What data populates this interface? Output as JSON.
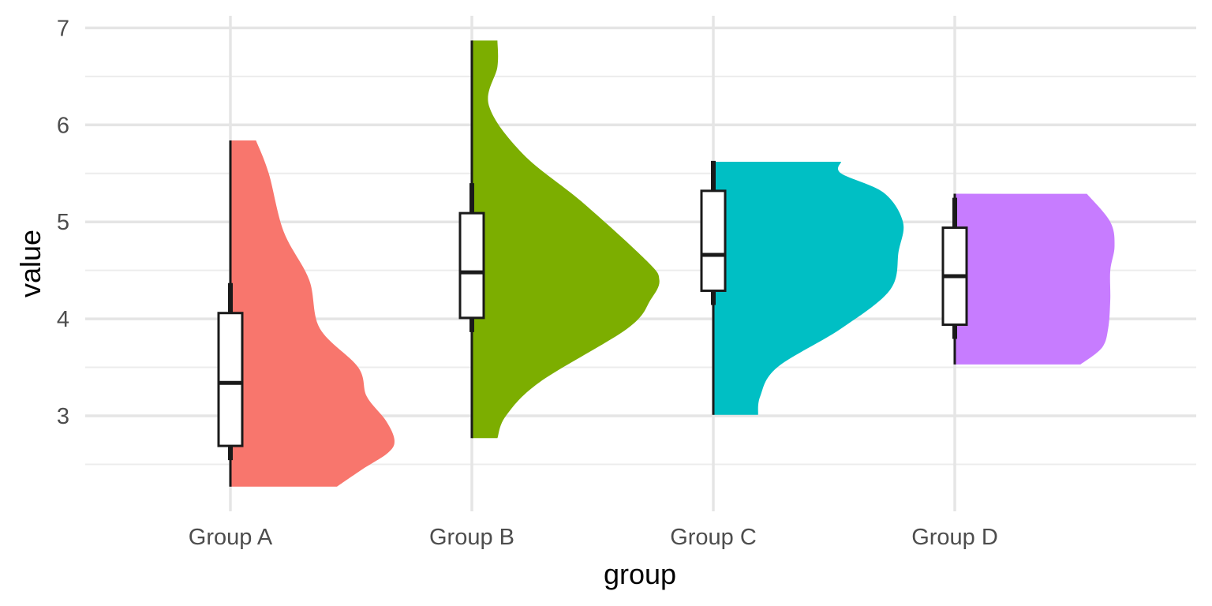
{
  "chart_data": {
    "type": "violin",
    "title": "",
    "xlabel": "group",
    "ylabel": "value",
    "ylim": [
      2.05,
      7.1
    ],
    "y_ticks": [
      3,
      4,
      5,
      6,
      7
    ],
    "y_tick_labels": [
      "3",
      "4",
      "5",
      "6",
      "7"
    ],
    "categories": [
      "Group A",
      "Group B",
      "Group C",
      "Group D"
    ],
    "grid": true,
    "legend": "none",
    "series": [
      {
        "group": "Group A",
        "color": "#F8766D",
        "min": 2.27,
        "q1": 2.69,
        "median": 3.34,
        "q3": 4.06,
        "max": 5.84,
        "density": [
          [
            2.27,
            0.5
          ],
          [
            2.45,
            0.62
          ],
          [
            2.62,
            0.74
          ],
          [
            2.75,
            0.77
          ],
          [
            2.95,
            0.73
          ],
          [
            3.2,
            0.64
          ],
          [
            3.5,
            0.6
          ],
          [
            3.9,
            0.42
          ],
          [
            4.4,
            0.37
          ],
          [
            4.9,
            0.25
          ],
          [
            5.5,
            0.18
          ],
          [
            5.84,
            0.12
          ]
        ]
      },
      {
        "group": "Group B",
        "color": "#7CAE00",
        "min": 2.77,
        "q1": 4.01,
        "median": 4.48,
        "q3": 5.09,
        "max": 6.87,
        "density": [
          [
            2.77,
            0.12
          ],
          [
            3.0,
            0.16
          ],
          [
            3.35,
            0.32
          ],
          [
            3.9,
            0.73
          ],
          [
            4.2,
            0.84
          ],
          [
            4.4,
            0.88
          ],
          [
            4.6,
            0.82
          ],
          [
            5.2,
            0.52
          ],
          [
            5.7,
            0.24
          ],
          [
            6.2,
            0.08
          ],
          [
            6.6,
            0.12
          ],
          [
            6.87,
            0.12
          ]
        ]
      },
      {
        "group": "Group C",
        "color": "#00BFC4",
        "min": 3.01,
        "q1": 4.29,
        "median": 4.66,
        "q3": 5.32,
        "max": 5.62,
        "density": [
          [
            3.01,
            0.21
          ],
          [
            3.2,
            0.22
          ],
          [
            3.5,
            0.3
          ],
          [
            3.9,
            0.6
          ],
          [
            4.3,
            0.83
          ],
          [
            4.7,
            0.87
          ],
          [
            5.0,
            0.89
          ],
          [
            5.3,
            0.8
          ],
          [
            5.5,
            0.6
          ],
          [
            5.62,
            0.6
          ]
        ]
      },
      {
        "group": "Group D",
        "color": "#C77CFF",
        "min": 3.53,
        "q1": 3.94,
        "median": 4.44,
        "q3": 4.94,
        "max": 5.29,
        "density": [
          [
            3.53,
            0.59
          ],
          [
            3.7,
            0.69
          ],
          [
            3.9,
            0.72
          ],
          [
            4.2,
            0.73
          ],
          [
            4.5,
            0.73
          ],
          [
            4.75,
            0.75
          ],
          [
            5.0,
            0.73
          ],
          [
            5.29,
            0.62
          ]
        ]
      }
    ]
  }
}
